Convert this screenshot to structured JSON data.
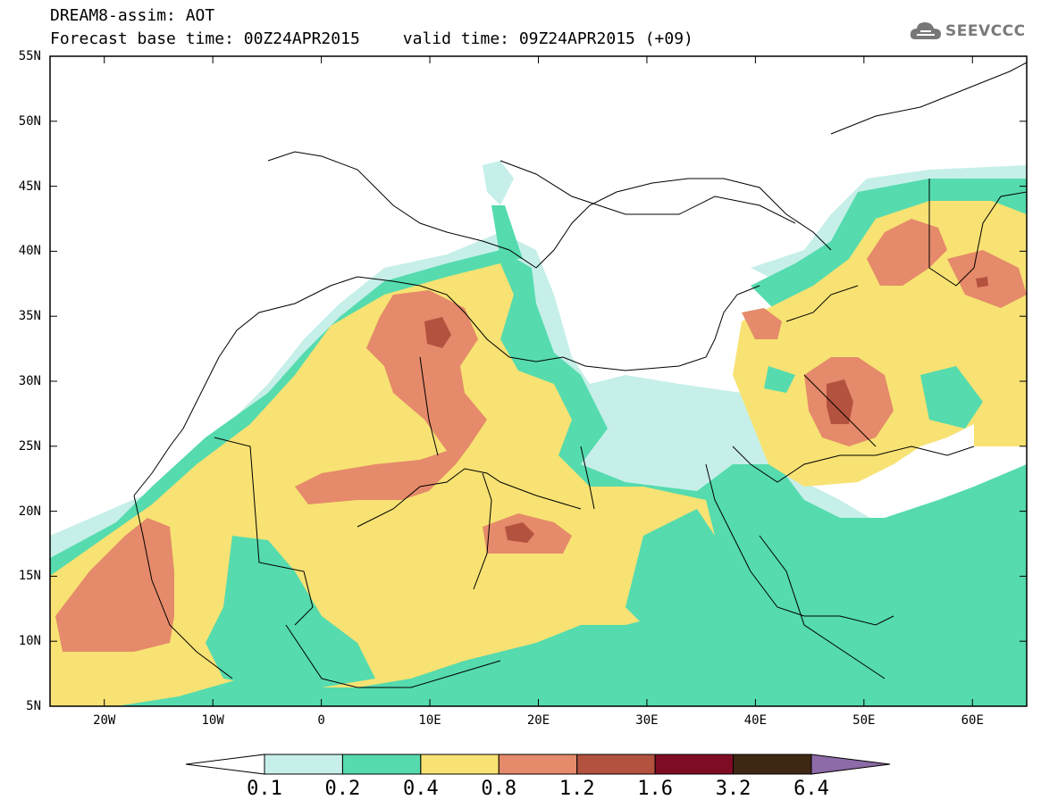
{
  "header": {
    "line1": "DREAM8-assim: AOT",
    "base_time": "Forecast base time: 00Z24APR2015",
    "valid_time": "valid time: 09Z24APR2015 (+09)"
  },
  "logo": {
    "text": "SEEVCCC",
    "icon": "cloud-icon"
  },
  "map": {
    "lon_range": [
      -25,
      65
    ],
    "lat_range": [
      5,
      55
    ],
    "lat_labels": [
      "55N",
      "50N",
      "45N",
      "40N",
      "35N",
      "30N",
      "25N",
      "20N",
      "15N",
      "10N",
      "5N"
    ],
    "lon_labels": [
      "20W",
      "10W",
      "0",
      "10E",
      "20E",
      "30E",
      "40E",
      "50E",
      "60E"
    ]
  },
  "colorbar": {
    "colors": [
      "#ffffff",
      "#c6efe9",
      "#55dbae",
      "#f7e273",
      "#e58a6a",
      "#b45240",
      "#7e0c25",
      "#3e2713",
      "#8d6aa8"
    ],
    "labels": [
      "0.1",
      "0.2",
      "0.4",
      "0.8",
      "1.2",
      "1.6",
      "3.2",
      "6.4"
    ]
  }
}
